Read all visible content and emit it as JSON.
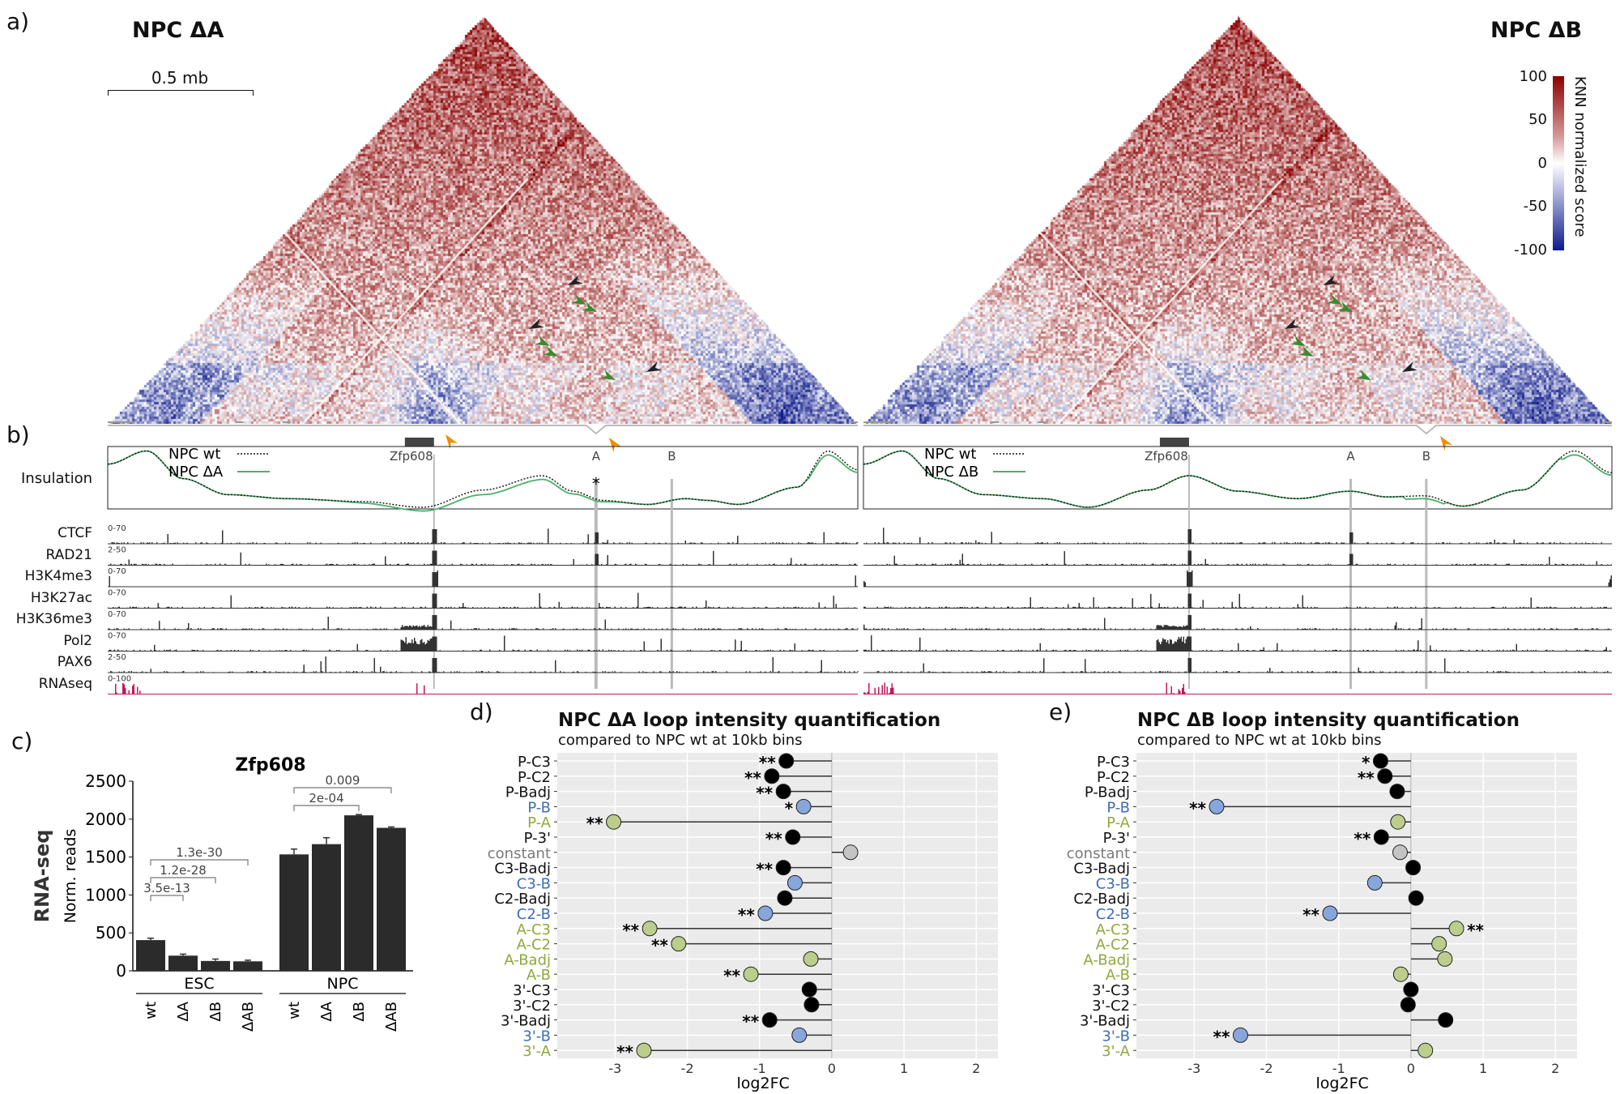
{
  "panel_labels": {
    "a": "a)",
    "b": "b)",
    "c": "c)",
    "d": "d)",
    "e": "e)"
  },
  "hic": {
    "left_title": "NPC ΔA",
    "right_title": "NPC ΔB",
    "scale_bar": "0.5 mb",
    "colorbar": {
      "label": "KNN normalized score",
      "ticks": [
        "100",
        "50",
        "0",
        "-50",
        "-100"
      ],
      "colors": {
        "high": "#8b0000",
        "mid": "#ffffff",
        "low": "#0d1a8c"
      }
    },
    "arrow_colors": {
      "black": "#222222",
      "green": "#3c8a2e",
      "orange": "#f08c00"
    }
  },
  "annotation": {
    "gene": "Zfp608",
    "element_a": "A",
    "element_b": "B",
    "asterisk": "*"
  },
  "insulation": {
    "label": "Insulation",
    "left_legend": [
      {
        "name": "NPC wt",
        "style": "dotted",
        "color": "#111111"
      },
      {
        "name": "NPC ΔA",
        "style": "solid",
        "color": "#4caf6a"
      }
    ],
    "right_legend": [
      {
        "name": "NPC wt",
        "style": "dotted",
        "color": "#111111"
      },
      {
        "name": "NPC ΔB",
        "style": "solid",
        "color": "#4caf6a"
      }
    ]
  },
  "tracks": [
    {
      "name": "CTCF",
      "range": "0-70",
      "color": "#333333"
    },
    {
      "name": "RAD21",
      "range": "2-50",
      "color": "#333333"
    },
    {
      "name": "H3K4me3",
      "range": "0-70",
      "color": "#333333"
    },
    {
      "name": "H3K27ac",
      "range": "0-70",
      "color": "#333333"
    },
    {
      "name": "H3K36me3",
      "range": "0-70",
      "color": "#333333"
    },
    {
      "name": "Pol2",
      "range": "0-70",
      "color": "#333333"
    },
    {
      "name": "PAX6",
      "range": "2-50",
      "color": "#333333"
    },
    {
      "name": "RNAseq",
      "range": "0-100",
      "color": "#c2185b"
    }
  ],
  "chart_data": [
    {
      "type": "bar",
      "title": "Zfp608",
      "ylabel": "RNA-seq",
      "ylabel2": "Norm. reads",
      "ylim": [
        0,
        2500
      ],
      "yticks": [
        "0",
        "500",
        "1000",
        "1500",
        "2000",
        "2500"
      ],
      "groups": [
        {
          "name": "ESC",
          "categories": [
            "wt",
            "ΔA",
            "ΔB",
            "ΔAB"
          ],
          "values": [
            405,
            200,
            130,
            125
          ],
          "errors": [
            25,
            20,
            25,
            15
          ]
        },
        {
          "name": "NPC",
          "categories": [
            "wt",
            "ΔA",
            "ΔB",
            "ΔAB"
          ],
          "values": [
            1535,
            1670,
            2050,
            1885
          ],
          "errors": [
            70,
            85,
            10,
            12
          ]
        }
      ],
      "comparisons": [
        {
          "group": 0,
          "from": 0,
          "to": 1,
          "label": "3.5e-13"
        },
        {
          "group": 0,
          "from": 0,
          "to": 2,
          "label": "1.2e-28"
        },
        {
          "group": 0,
          "from": 0,
          "to": 3,
          "label": "1.3e-30"
        },
        {
          "group": 1,
          "from": 0,
          "to": 2,
          "label": "2e-04"
        },
        {
          "group": 1,
          "from": 0,
          "to": 3,
          "label": "0.009"
        }
      ],
      "bar_color": "#2b2b2b"
    },
    {
      "type": "lollipop",
      "title": "NPC ΔA loop intensity quantification",
      "subtitle": "compared to NPC wt at 10kb bins",
      "xlabel": "log2FC",
      "xlim": [
        -3.8,
        2.3
      ],
      "xticks": [
        "-3",
        "-2",
        "-1",
        "0",
        "1",
        "2"
      ],
      "rows": [
        {
          "label": "P-C3",
          "kind": "black",
          "value": -0.63,
          "sig": "**"
        },
        {
          "label": "P-C2",
          "kind": "black",
          "value": -0.83,
          "sig": "**"
        },
        {
          "label": "P-Badj",
          "kind": "black",
          "value": -0.67,
          "sig": "**"
        },
        {
          "label": "P-B",
          "kind": "blue",
          "value": -0.39,
          "sig": "*"
        },
        {
          "label": "P-A",
          "kind": "green",
          "value": -3.02,
          "sig": "**"
        },
        {
          "label": "P-3'",
          "kind": "black",
          "value": -0.54,
          "sig": "**"
        },
        {
          "label": "constant",
          "kind": "grey",
          "value": 0.26,
          "sig": ""
        },
        {
          "label": "C3-Badj",
          "kind": "black",
          "value": -0.67,
          "sig": "**"
        },
        {
          "label": "C3-B",
          "kind": "blue",
          "value": -0.51,
          "sig": ""
        },
        {
          "label": "C2-Badj",
          "kind": "black",
          "value": -0.65,
          "sig": ""
        },
        {
          "label": "C2-B",
          "kind": "blue",
          "value": -0.92,
          "sig": "**"
        },
        {
          "label": "A-C3",
          "kind": "green",
          "value": -2.52,
          "sig": "**"
        },
        {
          "label": "A-C2",
          "kind": "green",
          "value": -2.12,
          "sig": "**"
        },
        {
          "label": "A-Badj",
          "kind": "green",
          "value": -0.29,
          "sig": ""
        },
        {
          "label": "A-B",
          "kind": "green",
          "value": -1.12,
          "sig": "**"
        },
        {
          "label": "3'-C3",
          "kind": "black",
          "value": -0.31,
          "sig": ""
        },
        {
          "label": "3'-C2",
          "kind": "black",
          "value": -0.28,
          "sig": ""
        },
        {
          "label": "3'-Badj",
          "kind": "black",
          "value": -0.86,
          "sig": "**"
        },
        {
          "label": "3'-B",
          "kind": "blue",
          "value": -0.45,
          "sig": ""
        },
        {
          "label": "3'-A",
          "kind": "green",
          "value": -2.6,
          "sig": "**"
        }
      ]
    },
    {
      "type": "lollipop",
      "title": "NPC ΔB loop intensity quantification",
      "subtitle": "compared to NPC wt at 10kb bins",
      "xlabel": "log2FC",
      "xlim": [
        -3.8,
        2.3
      ],
      "xticks": [
        "-3",
        "-2",
        "-1",
        "0",
        "1",
        "2"
      ],
      "rows": [
        {
          "label": "P-C3",
          "kind": "black",
          "value": -0.42,
          "sig": "*"
        },
        {
          "label": "P-C2",
          "kind": "black",
          "value": -0.36,
          "sig": "**"
        },
        {
          "label": "P-Badj",
          "kind": "black",
          "value": -0.19,
          "sig": ""
        },
        {
          "label": "P-B",
          "kind": "blue",
          "value": -2.69,
          "sig": "**"
        },
        {
          "label": "P-A",
          "kind": "green",
          "value": -0.18,
          "sig": ""
        },
        {
          "label": "P-3'",
          "kind": "black",
          "value": -0.41,
          "sig": "**"
        },
        {
          "label": "constant",
          "kind": "grey",
          "value": -0.15,
          "sig": ""
        },
        {
          "label": "C3-Badj",
          "kind": "black",
          "value": 0.03,
          "sig": ""
        },
        {
          "label": "C3-B",
          "kind": "blue",
          "value": -0.5,
          "sig": ""
        },
        {
          "label": "C2-Badj",
          "kind": "black",
          "value": 0.07,
          "sig": ""
        },
        {
          "label": "C2-B",
          "kind": "blue",
          "value": -1.12,
          "sig": "**"
        },
        {
          "label": "A-C3",
          "kind": "green",
          "value": 0.63,
          "sig": "**"
        },
        {
          "label": "A-C2",
          "kind": "green",
          "value": 0.39,
          "sig": ""
        },
        {
          "label": "A-Badj",
          "kind": "green",
          "value": 0.47,
          "sig": ""
        },
        {
          "label": "A-B",
          "kind": "green",
          "value": -0.14,
          "sig": ""
        },
        {
          "label": "3'-C3",
          "kind": "black",
          "value": 0.0,
          "sig": ""
        },
        {
          "label": "3'-C2",
          "kind": "black",
          "value": -0.04,
          "sig": ""
        },
        {
          "label": "3'-Badj",
          "kind": "black",
          "value": 0.48,
          "sig": ""
        },
        {
          "label": "3'-B",
          "kind": "blue",
          "value": -2.36,
          "sig": "**"
        },
        {
          "label": "3'-A",
          "kind": "green",
          "value": 0.2,
          "sig": ""
        }
      ]
    }
  ],
  "kind_colors": {
    "black": {
      "fill": "#000000",
      "text": "#111111"
    },
    "blue": {
      "fill": "#86a6dc",
      "text": "#3e6db5"
    },
    "green": {
      "fill": "#bccd8c",
      "text": "#8fa83c"
    },
    "grey": {
      "fill": "#c4c4c4",
      "text": "#7a7a7a"
    }
  }
}
